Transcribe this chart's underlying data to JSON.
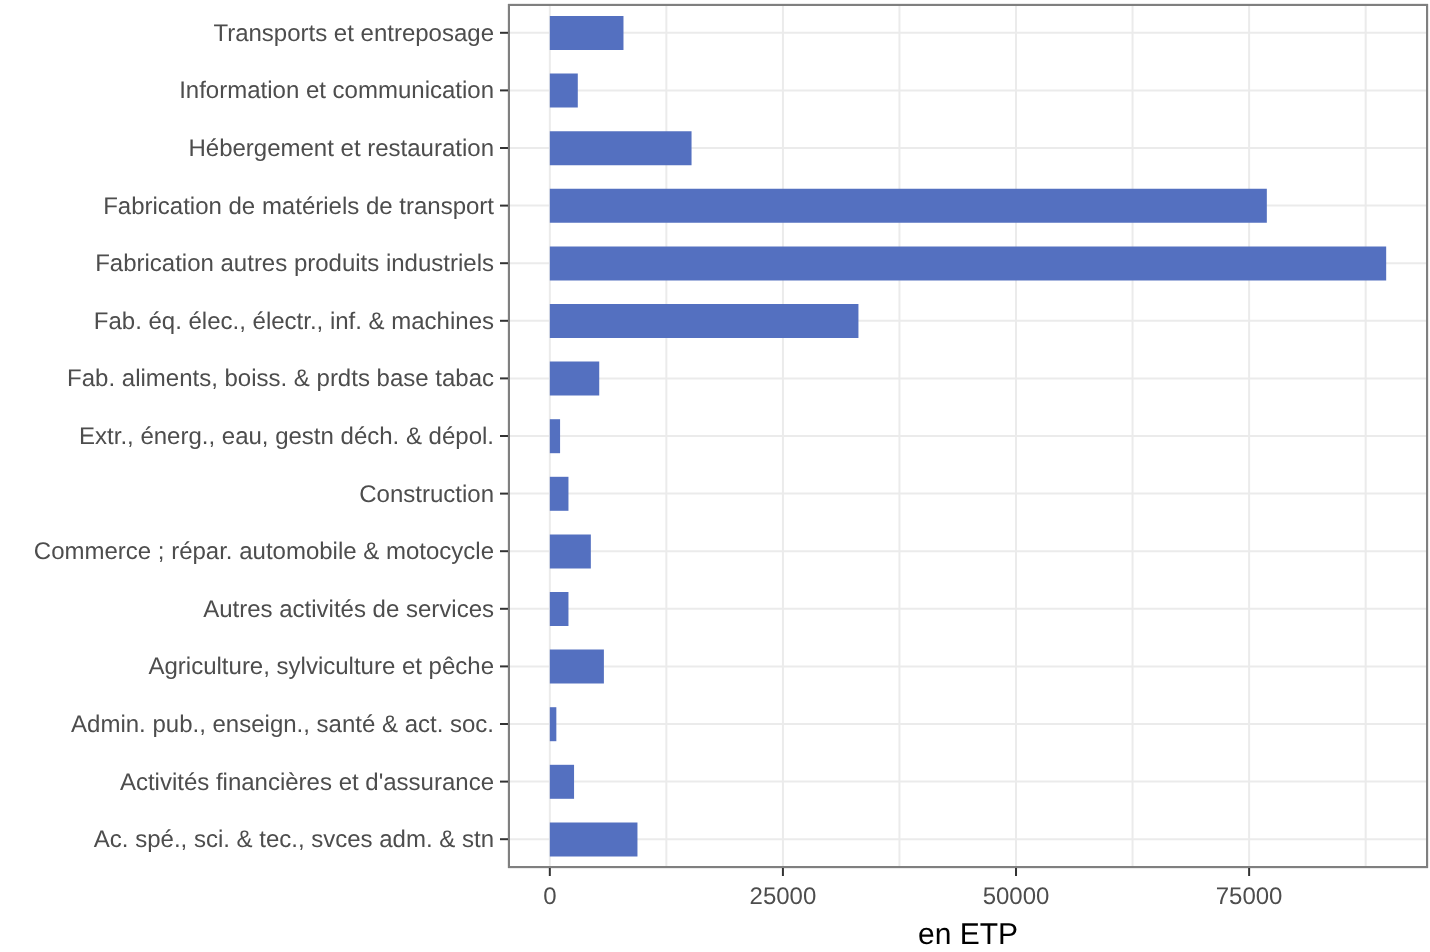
{
  "chart_data": {
    "type": "bar",
    "orientation": "horizontal",
    "xlabel": "en ETP",
    "categories": [
      "Transports et entreposage",
      "Information et communication",
      "Hébergement et restauration",
      "Fabrication de matériels de transport",
      "Fabrication autres produits industriels",
      "Fab. éq. élec., électr., inf. & machines",
      "Fab. aliments, boiss. & prdts base tabac",
      "Extr., énerg., eau, gestn déch. & dépol.",
      "Construction",
      "Commerce ; répar. automobile & motocycle",
      "Autres activités de services",
      "Agriculture, sylviculture et pêche",
      "Admin. pub., enseign., santé & act. soc.",
      "Activités financières et d'assurance",
      "Ac. spé., sci. & tec., svces adm. & stn"
    ],
    "values": [
      7900,
      3000,
      15200,
      76900,
      89700,
      33100,
      5300,
      1100,
      2000,
      4400,
      2000,
      5800,
      700,
      2600,
      9400
    ],
    "color": "#5470c0",
    "xlim": [
      -4485,
      94185
    ],
    "xticks": [
      0,
      {
        "value": 12500,
        "label": null
      },
      25000,
      {
        "value": 37500,
        "label": null
      },
      50000,
      {
        "value": 62500,
        "label": null
      },
      75000,
      {
        "value": 87500,
        "label": null
      }
    ],
    "grid": true
  }
}
